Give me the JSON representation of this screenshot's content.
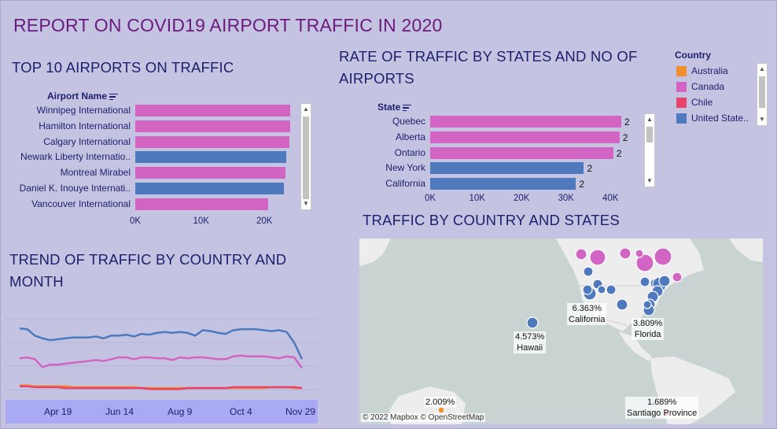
{
  "title": "REPORT ON COVID19 AIRPORT TRAFFIC IN 2020",
  "top10": {
    "heading": "TOP 10 AIRPORTS ON TRAFFIC",
    "col_header": "Airport Name",
    "rows": [
      {
        "label": "Winnipeg International",
        "country": "Canada",
        "value": 24500
      },
      {
        "label": "Hamilton International",
        "country": "Canada",
        "value": 24500
      },
      {
        "label": "Calgary International",
        "country": "Canada",
        "value": 24300
      },
      {
        "label": "Newark Liberty Internatio..",
        "country": "United States",
        "value": 23900
      },
      {
        "label": "Montreal Mirabel",
        "country": "Canada",
        "value": 23700
      },
      {
        "label": "Daniel K. Inouye Internati..",
        "country": "United States",
        "value": 23500
      },
      {
        "label": "Vancouver International",
        "country": "Canada",
        "value": 21000
      }
    ],
    "ticks": [
      "0K",
      "10K",
      "20K"
    ],
    "tick_values": [
      0,
      10000,
      20000
    ]
  },
  "states": {
    "heading_line1": "RATE OF TRAFFIC BY STATES AND NO OF",
    "heading_line2": "AIRPORTS",
    "col_header": "State",
    "rows": [
      {
        "label": "Quebec",
        "country": "Canada",
        "value": 43000,
        "airports": "2"
      },
      {
        "label": "Alberta",
        "country": "Canada",
        "value": 42600,
        "airports": "2"
      },
      {
        "label": "Ontario",
        "country": "Canada",
        "value": 41200,
        "airports": "2"
      },
      {
        "label": "New York",
        "country": "United States",
        "value": 34600,
        "airports": "2"
      },
      {
        "label": "California",
        "country": "United States",
        "value": 32800,
        "airports": "2"
      }
    ],
    "ticks": [
      "0K",
      "10K",
      "20K",
      "30K",
      "40K"
    ],
    "tick_values": [
      0,
      10000,
      20000,
      30000,
      40000
    ]
  },
  "legend": {
    "title": "Country",
    "items": [
      {
        "label": "Australia",
        "color": "#f28e2b"
      },
      {
        "label": "Canada",
        "color": "#d264c4"
      },
      {
        "label": "Chile",
        "color": "#e8436b"
      },
      {
        "label": "United State..",
        "color": "#4e79bd"
      }
    ]
  },
  "trend": {
    "heading_line1": "TREND OF TRAFFIC BY COUNTRY AND",
    "heading_line2": "MONTH",
    "xticks": [
      "Apr 19",
      "Jun 14",
      "Aug 9",
      "Oct 4",
      "Nov 29"
    ],
    "series": [
      {
        "country": "United States",
        "color": "#4e79bd",
        "values": [
          79,
          78,
          71,
          68,
          66,
          67,
          68,
          69,
          69,
          69,
          70,
          68,
          71,
          71,
          72,
          70,
          73,
          72,
          74,
          75,
          74,
          75,
          74,
          71,
          77,
          76,
          74,
          73,
          77,
          78,
          78,
          78,
          77,
          76,
          77,
          75,
          63,
          45
        ]
      },
      {
        "country": "Canada",
        "color": "#d264c4",
        "values": [
          46,
          47,
          45,
          36,
          39,
          39,
          40,
          41,
          42,
          43,
          44,
          43,
          45,
          47,
          47,
          45,
          47,
          47,
          46,
          46,
          44,
          47,
          46,
          47,
          47,
          46,
          45,
          45,
          48,
          49,
          48,
          48,
          48,
          47,
          46,
          48,
          47,
          35
        ]
      },
      {
        "country": "Australia",
        "color": "#f28e2b",
        "values": [
          16,
          16,
          15,
          15,
          15,
          15,
          15,
          14,
          14,
          14,
          14,
          14,
          14,
          14,
          14,
          14,
          13,
          13,
          13,
          13,
          13,
          13,
          13,
          13,
          13,
          13,
          13,
          13,
          13,
          13,
          13,
          13,
          13,
          14,
          14,
          14,
          13,
          13
        ]
      },
      {
        "country": "Chile",
        "color": "#e8436b",
        "values": [
          15,
          15,
          14,
          14,
          14,
          14,
          13,
          13,
          13,
          13,
          13,
          13,
          13,
          13,
          13,
          13,
          13,
          12,
          12,
          12,
          12,
          12,
          13,
          13,
          13,
          13,
          13,
          13,
          14,
          14,
          14,
          14,
          14,
          14,
          14,
          14,
          14,
          13
        ]
      }
    ]
  },
  "map": {
    "heading": "TRAFFIC BY COUNTRY AND STATES",
    "attribution": "© 2022 Mapbox © OpenStreetMap",
    "labels": [
      {
        "pct": "6.363%",
        "name": "California"
      },
      {
        "pct": "3.809%",
        "name": "Florida"
      },
      {
        "pct": "4.573%",
        "name": "Hawaii"
      },
      {
        "pct": "2.009%",
        "name": ""
      },
      {
        "pct": "1.689%",
        "name": "Santiago Province"
      }
    ]
  }
}
